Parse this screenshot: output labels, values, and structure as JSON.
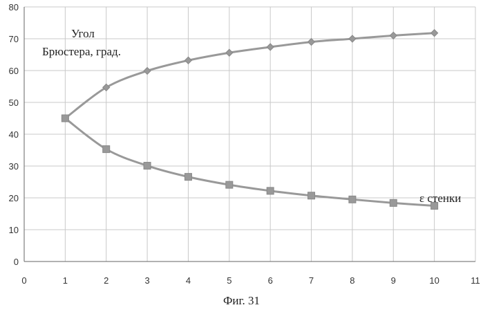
{
  "caption": "Фиг. 31",
  "chart_data": {
    "type": "line",
    "x": [
      1,
      2,
      3,
      4,
      5,
      6,
      7,
      8,
      9,
      10
    ],
    "series": [
      {
        "values": [
          45,
          54.7,
          59.9,
          63.2,
          65.6,
          67.4,
          69.0,
          70.0,
          71.0,
          71.8
        ],
        "marker": "diamond",
        "color": "#999999"
      },
      {
        "values": [
          45,
          35.3,
          30.1,
          26.6,
          24.1,
          22.2,
          20.7,
          19.5,
          18.4,
          17.5
        ],
        "marker": "square",
        "color": "#999999"
      }
    ],
    "annotations": [
      "Угол",
      "Брюстера, град.",
      "ε стенки"
    ],
    "xlim": [
      0,
      11
    ],
    "ylim": [
      0,
      80
    ],
    "xticks": [
      0,
      1,
      2,
      3,
      4,
      5,
      6,
      7,
      8,
      9,
      10,
      11
    ],
    "yticks": [
      0,
      10,
      20,
      30,
      40,
      50,
      60,
      70,
      80
    ],
    "grid": true,
    "legend": "none"
  }
}
